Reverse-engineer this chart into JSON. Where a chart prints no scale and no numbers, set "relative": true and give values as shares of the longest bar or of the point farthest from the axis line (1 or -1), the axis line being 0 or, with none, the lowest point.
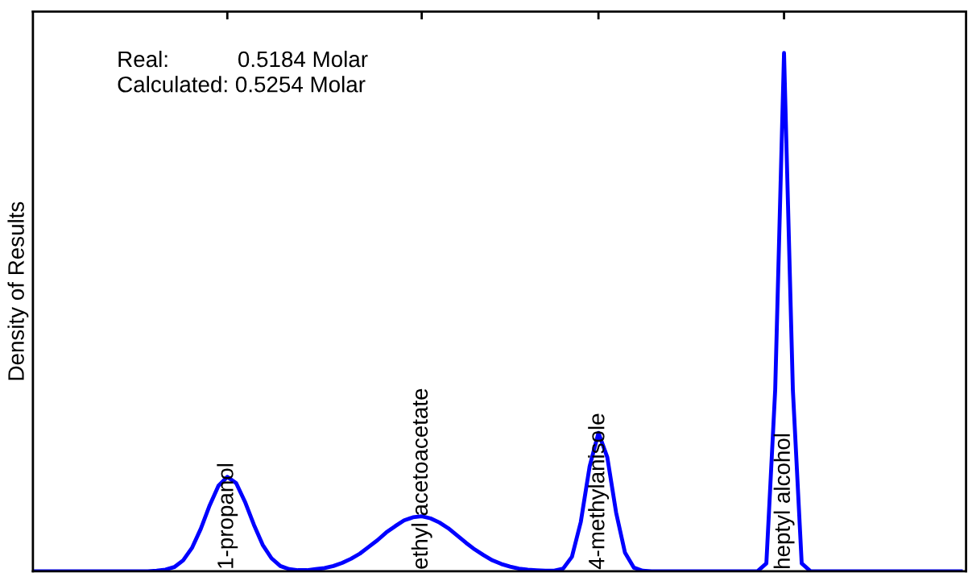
{
  "chart_data": {
    "type": "line",
    "relative": true,
    "ylabel": "Density of Results",
    "categories": [
      null,
      null,
      null,
      null,
      null,
      null,
      null,
      null,
      null,
      null,
      null,
      null,
      null,
      null,
      null,
      null,
      null,
      null,
      null,
      null,
      null,
      null,
      null,
      null,
      null,
      null,
      null,
      null,
      null,
      null,
      null,
      null,
      null,
      null,
      null,
      null,
      null,
      null,
      null,
      null,
      null,
      null,
      null,
      null,
      null,
      null,
      null,
      null,
      null,
      null,
      null,
      null,
      null,
      null,
      null,
      null,
      null,
      null,
      null,
      null,
      null,
      null,
      null,
      null,
      null,
      null,
      null,
      null,
      null,
      null,
      null,
      null,
      null,
      null,
      null,
      null,
      null,
      null,
      null,
      null,
      null,
      null,
      null,
      null,
      null,
      null,
      null,
      null,
      null,
      null,
      null,
      null,
      null,
      null,
      null,
      null,
      null,
      null,
      null,
      null,
      null,
      null,
      null,
      null,
      null,
      null
    ],
    "series": [
      {
        "color": "#0000ff",
        "values": [
          0,
          0,
          0,
          0,
          0,
          0,
          0,
          0,
          0,
          0,
          0,
          0,
          0,
          0,
          0.001,
          0.003,
          0.008,
          0.021,
          0.045,
          0.082,
          0.127,
          0.165,
          0.182,
          0.17,
          0.134,
          0.09,
          0.051,
          0.025,
          0.01,
          0.004,
          0.002,
          0.002,
          0.004,
          0.006,
          0.01,
          0.016,
          0.024,
          0.034,
          0.047,
          0.06,
          0.075,
          0.087,
          0.098,
          0.104,
          0.106,
          0.102,
          0.094,
          0.083,
          0.069,
          0.055,
          0.042,
          0.031,
          0.021,
          0.014,
          0.009,
          0.005,
          0.003,
          0.002,
          0.001,
          0.001,
          0.005,
          0.028,
          0.095,
          0.202,
          0.267,
          0.22,
          0.113,
          0.036,
          0.007,
          0.001,
          0,
          0,
          0,
          0,
          0,
          0,
          0,
          0,
          0,
          0,
          0,
          0,
          0,
          0.015,
          0.35,
          1,
          0.35,
          0.015,
          0,
          0,
          0,
          0,
          0,
          0,
          0,
          0,
          0,
          0,
          0,
          0,
          0,
          0,
          0,
          0,
          0,
          0
        ]
      }
    ],
    "grid": false,
    "legend": false,
    "marker": "none",
    "line_style": "solid",
    "annotations": [
      "Real:           0.5184 Molar",
      "Calculated: 0.5254 Molar",
      "1-propanol",
      "ethyl acetoacetate",
      "4-methylanisole",
      "heptyl alcohol"
    ]
  }
}
